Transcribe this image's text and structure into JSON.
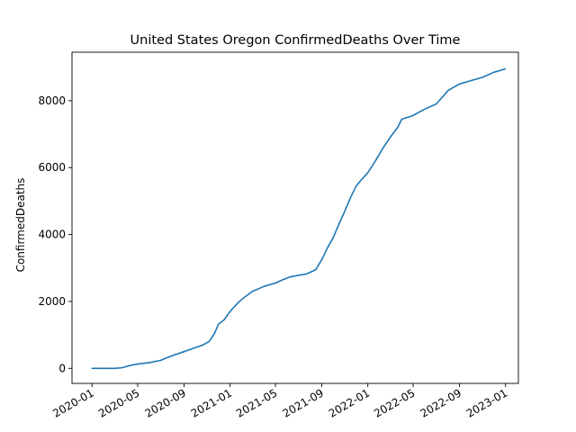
{
  "chart_data": {
    "type": "line",
    "title": "United States Oregon ConfirmedDeaths Over Time",
    "xlabel": "",
    "ylabel": "ConfirmedDeaths",
    "xlim": [
      "2019-11-09",
      "2023-02-04"
    ],
    "ylim": [
      -450,
      9450
    ],
    "x_ticks": [
      "2020-01",
      "2020-05",
      "2020-09",
      "2021-01",
      "2021-05",
      "2021-09",
      "2022-01",
      "2022-05",
      "2022-09",
      "2023-01"
    ],
    "y_ticks": [
      0,
      2000,
      4000,
      6000,
      8000
    ],
    "grid": false,
    "legend": "none",
    "series": [
      {
        "color": "#1f77b4",
        "x": [
          "2020-01-01",
          "2020-03-01",
          "2020-03-21",
          "2020-04-06",
          "2020-04-21",
          "2020-05-01",
          "2020-06-01",
          "2020-07-01",
          "2020-08-01",
          "2020-09-01",
          "2020-10-01",
          "2020-10-21",
          "2020-11-06",
          "2020-11-21",
          "2020-12-01",
          "2020-12-16",
          "2021-01-01",
          "2021-01-21",
          "2021-02-05",
          "2021-03-01",
          "2021-04-01",
          "2021-05-01",
          "2021-05-21",
          "2021-06-11",
          "2021-07-01",
          "2021-07-21",
          "2021-08-01",
          "2021-08-16",
          "2021-09-01",
          "2021-09-16",
          "2021-10-01",
          "2021-10-16",
          "2021-11-01",
          "2021-11-16",
          "2021-12-01",
          "2021-12-16",
          "2022-01-01",
          "2022-01-21",
          "2022-02-11",
          "2022-03-01",
          "2022-03-21",
          "2022-04-01",
          "2022-04-21",
          "2022-05-01",
          "2022-06-01",
          "2022-07-01",
          "2022-07-21",
          "2022-08-01",
          "2022-08-16",
          "2022-09-01",
          "2022-10-01",
          "2022-11-01",
          "2022-12-01",
          "2022-12-31"
        ],
        "y": [
          0,
          0,
          20,
          70,
          110,
          130,
          170,
          240,
          380,
          500,
          620,
          700,
          800,
          1050,
          1320,
          1450,
          1700,
          1950,
          2100,
          2300,
          2450,
          2550,
          2650,
          2740,
          2780,
          2820,
          2870,
          2950,
          3250,
          3600,
          3900,
          4300,
          4700,
          5100,
          5450,
          5650,
          5850,
          6200,
          6600,
          6900,
          7200,
          7450,
          7520,
          7560,
          7750,
          7900,
          8150,
          8300,
          8400,
          8500,
          8600,
          8700,
          8850,
          8950
        ]
      }
    ]
  }
}
